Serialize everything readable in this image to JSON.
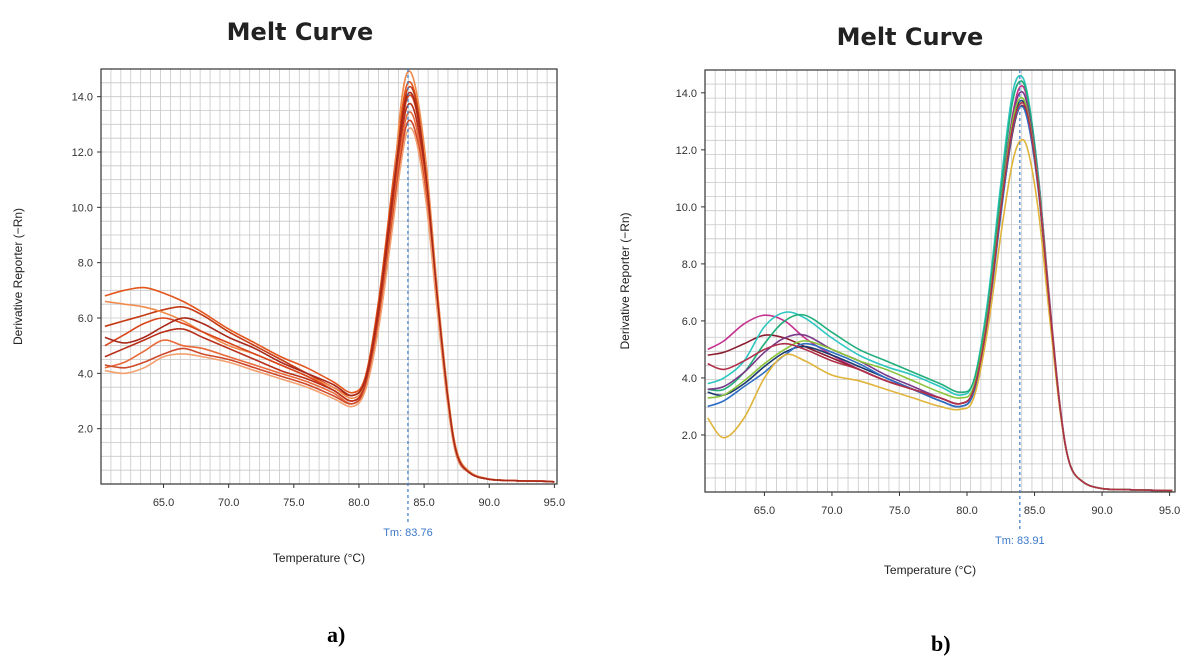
{
  "chart_data": [
    {
      "type": "line",
      "panel_label": "a)",
      "title": "Melt Curve",
      "xlabel": "Temperature (°C)",
      "ylabel": "Derivative Reporter (−Rn)",
      "xlim": [
        60.2,
        95.2
      ],
      "ylim": [
        0,
        15
      ],
      "xticks": [
        "65.0",
        "70.0",
        "75.0",
        "80.0",
        "85.0",
        "90.0",
        "95.0"
      ],
      "yticks": [
        "2.0",
        "4.0",
        "6.0",
        "8.0",
        "10.0",
        "12.0",
        "14.0"
      ],
      "grid": true,
      "tm_label": "Tm: 83.76",
      "tm_value": 83.76,
      "x": [
        60.5,
        62,
        63.5,
        65,
        66.5,
        68,
        70,
        72,
        74,
        76,
        78,
        79.5,
        80.5,
        81.5,
        82.5,
        83.2,
        83.76,
        84.4,
        85.2,
        86,
        86.8,
        87.5,
        88.5,
        90,
        92,
        94,
        95
      ],
      "series": [
        {
          "color": "#e4551c",
          "values": [
            6.8,
            7.0,
            7.1,
            6.9,
            6.6,
            6.2,
            5.6,
            5.1,
            4.6,
            4.2,
            3.7,
            3.3,
            3.9,
            6.6,
            10.5,
            13.2,
            14.5,
            13.9,
            11.2,
            7.0,
            3.3,
            1.2,
            0.4,
            0.18,
            0.12,
            0.1,
            0.08
          ]
        },
        {
          "color": "#c43a12",
          "values": [
            5.7,
            5.9,
            6.1,
            6.3,
            6.4,
            6.1,
            5.5,
            5.0,
            4.5,
            4.0,
            3.5,
            3.2,
            3.8,
            6.4,
            10.2,
            12.9,
            14.3,
            13.8,
            11.0,
            6.8,
            3.2,
            1.1,
            0.4,
            0.17,
            0.12,
            0.1,
            0.08
          ]
        },
        {
          "color": "#f08a4b",
          "values": [
            6.6,
            6.5,
            6.4,
            6.2,
            5.9,
            5.5,
            5.0,
            4.7,
            4.3,
            3.9,
            3.5,
            3.1,
            3.7,
            6.2,
            10.0,
            13.6,
            14.9,
            14.2,
            11.4,
            7.1,
            3.4,
            1.2,
            0.45,
            0.18,
            0.12,
            0.1,
            0.08
          ]
        },
        {
          "color": "#d9441a",
          "values": [
            5.0,
            5.4,
            5.8,
            6.0,
            5.8,
            5.5,
            5.1,
            4.7,
            4.3,
            3.9,
            3.4,
            3.0,
            3.6,
            6.0,
            9.8,
            12.6,
            14.0,
            13.5,
            10.8,
            6.7,
            3.1,
            1.1,
            0.4,
            0.17,
            0.12,
            0.1,
            0.08
          ]
        },
        {
          "color": "#b8301a",
          "values": [
            4.6,
            4.9,
            5.2,
            5.5,
            5.6,
            5.3,
            4.9,
            4.5,
            4.1,
            3.8,
            3.4,
            3.0,
            3.6,
            5.9,
            9.6,
            12.4,
            13.7,
            13.2,
            10.6,
            6.6,
            3.1,
            1.1,
            0.4,
            0.17,
            0.12,
            0.1,
            0.08
          ]
        },
        {
          "color": "#e86a3a",
          "values": [
            4.2,
            4.4,
            4.8,
            5.2,
            5.0,
            4.9,
            4.6,
            4.3,
            4.0,
            3.7,
            3.3,
            2.9,
            3.5,
            5.8,
            9.4,
            12.1,
            13.4,
            12.9,
            10.4,
            6.5,
            3.0,
            1.0,
            0.4,
            0.17,
            0.12,
            0.1,
            0.08
          ]
        },
        {
          "color": "#cf4a2a",
          "values": [
            4.3,
            4.2,
            4.4,
            4.7,
            4.9,
            4.7,
            4.5,
            4.2,
            3.9,
            3.6,
            3.2,
            2.9,
            3.5,
            5.7,
            9.2,
            11.8,
            13.1,
            12.6,
            10.2,
            6.4,
            3.0,
            1.0,
            0.4,
            0.17,
            0.12,
            0.1,
            0.08
          ]
        },
        {
          "color": "#f2a070",
          "values": [
            4.1,
            4.0,
            4.2,
            4.6,
            4.7,
            4.6,
            4.4,
            4.1,
            3.8,
            3.5,
            3.1,
            2.8,
            3.4,
            5.6,
            9.0,
            11.5,
            12.8,
            12.4,
            10.0,
            6.3,
            2.9,
            1.0,
            0.4,
            0.17,
            0.12,
            0.1,
            0.08
          ]
        },
        {
          "color": "#a8281a",
          "values": [
            5.3,
            5.1,
            5.3,
            5.7,
            6.0,
            5.8,
            5.3,
            4.9,
            4.4,
            4.0,
            3.6,
            3.2,
            3.8,
            6.3,
            10.1,
            12.8,
            14.1,
            13.6,
            10.9,
            6.8,
            3.2,
            1.1,
            0.4,
            0.17,
            0.12,
            0.1,
            0.08
          ]
        }
      ]
    },
    {
      "type": "line",
      "panel_label": "b)",
      "title": "Melt Curve",
      "xlabel": "Temperature (°C)",
      "ylabel": "Derivative Reporter (−Rn)",
      "xlim": [
        60.6,
        95.4
      ],
      "ylim": [
        0,
        14.8
      ],
      "xticks": [
        "65.0",
        "70.0",
        "75.0",
        "80.0",
        "85.0",
        "90.0",
        "95.0"
      ],
      "yticks": [
        "2.0",
        "4.0",
        "6.0",
        "8.0",
        "10.0",
        "12.0",
        "14.0"
      ],
      "grid": true,
      "tm_label": "Tm: 83.91",
      "tm_value": 83.91,
      "x": [
        60.8,
        62,
        63.5,
        65,
        66.5,
        68,
        70,
        72,
        74,
        76,
        78,
        79.5,
        80.5,
        81.5,
        82.5,
        83.3,
        83.91,
        84.5,
        85.3,
        86.1,
        86.9,
        87.6,
        88.6,
        90,
        92,
        94,
        95.2
      ],
      "series": [
        {
          "color": "#c5328f",
          "values": [
            5.0,
            5.3,
            5.9,
            6.2,
            6.0,
            5.4,
            4.8,
            4.3,
            3.9,
            3.6,
            3.3,
            3.1,
            3.6,
            6.2,
            10.2,
            13.0,
            14.2,
            13.7,
            11.0,
            6.8,
            3.0,
            1.0,
            0.35,
            0.12,
            0.08,
            0.06,
            0.05
          ]
        },
        {
          "color": "#8b1e2e",
          "values": [
            4.8,
            4.9,
            5.2,
            5.5,
            5.4,
            5.1,
            4.7,
            4.3,
            3.9,
            3.6,
            3.3,
            3.1,
            3.6,
            6.0,
            9.8,
            12.4,
            13.5,
            13.1,
            10.6,
            6.6,
            2.9,
            1.0,
            0.35,
            0.12,
            0.08,
            0.06,
            0.05
          ]
        },
        {
          "color": "#2ec6c0",
          "values": [
            3.8,
            4.0,
            4.6,
            5.8,
            6.3,
            6.1,
            5.4,
            4.8,
            4.4,
            4.1,
            3.7,
            3.4,
            3.9,
            6.6,
            10.8,
            13.8,
            14.6,
            13.9,
            11.0,
            6.7,
            2.9,
            1.0,
            0.35,
            0.12,
            0.08,
            0.06,
            0.05
          ]
        },
        {
          "color": "#1fae7a",
          "values": [
            3.6,
            3.6,
            4.2,
            5.2,
            6.0,
            6.2,
            5.6,
            5.0,
            4.6,
            4.2,
            3.8,
            3.5,
            3.9,
            6.4,
            10.5,
            13.5,
            14.4,
            13.8,
            10.9,
            6.6,
            2.9,
            1.0,
            0.35,
            0.12,
            0.08,
            0.06,
            0.05
          ]
        },
        {
          "color": "#7a3a8a",
          "values": [
            3.6,
            3.7,
            4.2,
            4.9,
            5.4,
            5.5,
            5.0,
            4.6,
            4.1,
            3.7,
            3.3,
            3.1,
            3.6,
            6.1,
            10.0,
            12.9,
            14.0,
            13.5,
            10.8,
            6.7,
            2.9,
            1.0,
            0.35,
            0.12,
            0.08,
            0.06,
            0.05
          ]
        },
        {
          "color": "#1b3a6e",
          "values": [
            3.5,
            3.4,
            3.8,
            4.4,
            4.9,
            5.1,
            4.8,
            4.4,
            4.0,
            3.6,
            3.2,
            3.0,
            3.5,
            6.0,
            9.9,
            12.7,
            13.7,
            13.2,
            10.6,
            6.6,
            2.9,
            1.0,
            0.35,
            0.12,
            0.08,
            0.06,
            0.05
          ]
        },
        {
          "color": "#2f6fc4",
          "values": [
            3.0,
            3.2,
            3.7,
            4.2,
            4.8,
            5.2,
            4.9,
            4.5,
            4.0,
            3.6,
            3.2,
            3.0,
            3.5,
            5.9,
            9.7,
            12.5,
            13.5,
            13.0,
            10.5,
            6.5,
            2.9,
            1.0,
            0.35,
            0.12,
            0.08,
            0.06,
            0.05
          ]
        },
        {
          "color": "#e0b43a",
          "values": [
            2.6,
            1.9,
            2.6,
            4.0,
            4.8,
            4.6,
            4.1,
            3.9,
            3.6,
            3.3,
            3.0,
            2.9,
            3.3,
            5.6,
            9.0,
            11.4,
            12.3,
            12.0,
            9.8,
            6.2,
            2.8,
            1.0,
            0.35,
            0.12,
            0.08,
            0.06,
            0.05
          ]
        },
        {
          "color": "#8ac43a",
          "values": [
            3.3,
            3.4,
            3.9,
            4.5,
            5.0,
            5.3,
            5.0,
            4.6,
            4.3,
            3.9,
            3.5,
            3.3,
            3.7,
            6.1,
            10.0,
            12.8,
            13.8,
            13.3,
            10.7,
            6.6,
            2.9,
            1.0,
            0.35,
            0.12,
            0.08,
            0.06,
            0.05
          ]
        },
        {
          "color": "#b0304a",
          "values": [
            4.5,
            4.3,
            4.6,
            5.0,
            5.2,
            5.0,
            4.6,
            4.3,
            3.9,
            3.6,
            3.3,
            3.1,
            3.6,
            6.0,
            9.9,
            12.6,
            13.6,
            13.2,
            10.6,
            6.6,
            2.9,
            1.0,
            0.35,
            0.12,
            0.08,
            0.06,
            0.05
          ]
        }
      ]
    }
  ]
}
